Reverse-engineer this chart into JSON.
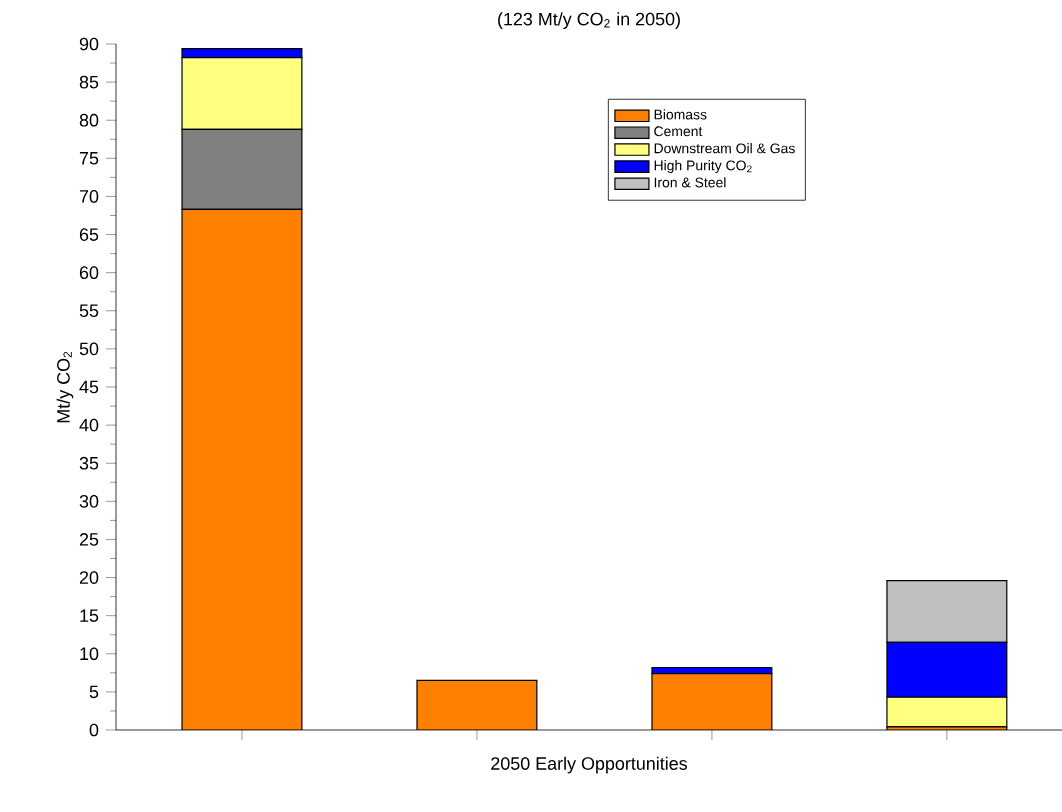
{
  "chart_data": {
    "type": "bar",
    "stacked": true,
    "title": "(123 Mt/y CO$_{2}$ in 2050)",
    "xlabel": "2050 Early Opportunities",
    "ylabel": "Mt/y CO$_{2}$",
    "categories": [
      null,
      null,
      null,
      null
    ],
    "series": [
      {
        "name": "Biomass",
        "color": "#ff8000",
        "values": [
          68.3,
          6.5,
          7.4,
          0.4
        ]
      },
      {
        "name": "Cement",
        "color": "#808080",
        "values": [
          10.5,
          0,
          0,
          0
        ]
      },
      {
        "name": "Downstream Oil & Gas",
        "color": "#ffff80",
        "values": [
          9.4,
          0,
          0,
          3.9
        ]
      },
      {
        "name": "High Purity CO$_{2}$",
        "color": "#0000ff",
        "values": [
          1.2,
          0,
          0.8,
          7.2
        ]
      },
      {
        "name": "Iron & Steel",
        "color": "#c0c0c0",
        "values": [
          0,
          0,
          0,
          8.1
        ]
      }
    ],
    "ylim": [
      0,
      90
    ],
    "yticks": [
      0,
      5,
      10,
      15,
      20,
      25,
      30,
      35,
      40,
      45,
      50,
      55,
      60,
      65,
      70,
      75,
      80,
      85,
      90
    ],
    "legend": "top right"
  }
}
